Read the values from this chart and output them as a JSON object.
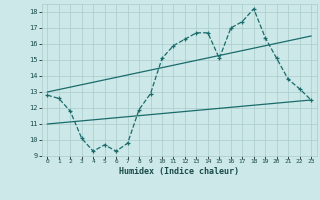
{
  "xlabel": "Humidex (Indice chaleur)",
  "ylabel": "",
  "bg_color": "#cce8e8",
  "grid_color": "#aacccc",
  "line_color": "#1a6b6b",
  "xlim": [
    -0.5,
    23.5
  ],
  "ylim": [
    9,
    18.5
  ],
  "yticks": [
    9,
    10,
    11,
    12,
    13,
    14,
    15,
    16,
    17,
    18
  ],
  "xticks": [
    0,
    1,
    2,
    3,
    4,
    5,
    6,
    7,
    8,
    9,
    10,
    11,
    12,
    13,
    14,
    15,
    16,
    17,
    18,
    19,
    20,
    21,
    22,
    23
  ],
  "dashed_x": [
    0,
    1,
    2,
    3,
    4,
    5,
    6,
    7,
    8,
    9,
    10,
    11,
    12,
    13,
    14,
    15,
    16,
    17,
    18,
    19,
    20,
    21,
    22,
    23
  ],
  "dashed_y": [
    12.8,
    12.6,
    11.8,
    10.1,
    9.3,
    9.7,
    9.3,
    9.8,
    11.9,
    12.9,
    15.1,
    15.9,
    16.3,
    16.7,
    16.7,
    15.1,
    17.0,
    17.4,
    18.2,
    16.4,
    15.1,
    13.8,
    13.2,
    12.5
  ],
  "upper_line_x": [
    0,
    23
  ],
  "upper_line_y": [
    13.0,
    16.5
  ],
  "lower_line_x": [
    0,
    23
  ],
  "lower_line_y": [
    11.0,
    12.5
  ]
}
